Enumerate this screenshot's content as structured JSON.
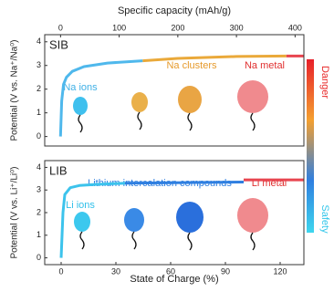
{
  "chart_data": [
    {
      "type": "line",
      "panel_label": "SIB",
      "xlabel": "Specific capacity (mAh/g)",
      "ylabel": "Potential (V vs. Na⁺/Na⁰)",
      "xlim": [
        -27,
        415
      ],
      "xticks": [
        0,
        100,
        200,
        300,
        400
      ],
      "ylim": [
        -0.4,
        4.3
      ],
      "yticks": [
        0,
        1,
        2,
        3,
        4
      ],
      "series": [
        {
          "color": "#4fb8ec",
          "x": [
            0,
            2,
            5,
            10,
            20,
            40,
            80,
            140
          ],
          "values": [
            0,
            1.5,
            2.2,
            2.5,
            2.75,
            2.95,
            3.1,
            3.2
          ]
        },
        {
          "color": "#eaa93a",
          "x": [
            140,
            200,
            300,
            385
          ],
          "values": [
            3.2,
            3.3,
            3.38,
            3.4
          ]
        },
        {
          "color": "#e8454f",
          "x": [
            385,
            415
          ],
          "values": [
            3.4,
            3.4
          ]
        }
      ],
      "annotations": [
        {
          "text": "Na ions",
          "color": "#3fb0e6"
        },
        {
          "text": "Na clusters",
          "color": "#e69a2c"
        },
        {
          "text": "Na metal",
          "color": "#e03030"
        }
      ]
    },
    {
      "type": "line",
      "panel_label": "LIB",
      "xlabel": "State of Charge (%)",
      "ylabel": "Potential (V vs. Li⁺/Li⁰)",
      "xlim": [
        -9,
        133
      ],
      "xticks": [
        0,
        30,
        60,
        90,
        120
      ],
      "ylim": [
        -0.3,
        4.3
      ],
      "yticks": [
        0,
        1,
        2,
        3,
        4
      ],
      "series": [
        {
          "color": "#3cc3ec",
          "x": [
            0,
            1,
            2,
            5,
            10,
            20,
            35
          ],
          "values": [
            0,
            2,
            2.8,
            3.1,
            3.2,
            3.25,
            3.3
          ]
        },
        {
          "color": "#2f7fe0",
          "x": [
            35,
            100
          ],
          "values": [
            3.3,
            3.35
          ]
        },
        {
          "color": "#e8454f",
          "x": [
            100,
            133
          ],
          "values": [
            3.45,
            3.45
          ]
        }
      ],
      "annotations": [
        {
          "text": "Li ions",
          "color": "#30c0ea"
        },
        {
          "text": "Lithium intercalation compounds",
          "color": "#2f7fe0"
        },
        {
          "text": "Li metal",
          "color": "#e03030"
        }
      ]
    }
  ],
  "colorbar": {
    "top_label": "Danger",
    "bottom_label": "Safety"
  }
}
